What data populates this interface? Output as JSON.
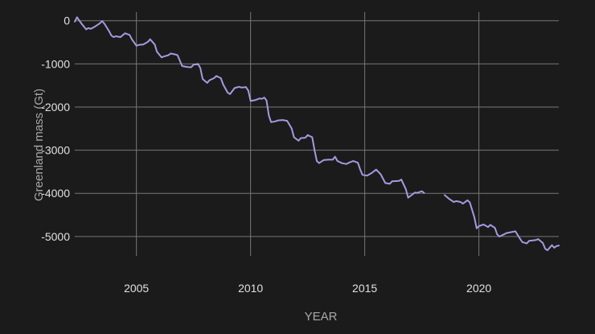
{
  "chart_data": {
    "type": "line",
    "xlabel": "YEAR",
    "ylabel": "Greenland mass (Gt)",
    "xlim": [
      2002.3,
      2023.5
    ],
    "ylim": [
      -5450,
      200
    ],
    "x_ticks": [
      2005,
      2010,
      2015,
      2020
    ],
    "y_ticks": [
      0,
      -1000,
      -2000,
      -3000,
      -4000,
      -5000
    ],
    "grid": true,
    "line_color": "#a59ae0",
    "series": [
      {
        "segments": [
          [
            [
              2002.3,
              -20
            ],
            [
              2002.4,
              80
            ],
            [
              2002.5,
              0
            ],
            [
              2002.6,
              -70
            ],
            [
              2002.8,
              -200
            ],
            [
              2002.9,
              -170
            ],
            [
              2003.0,
              -190
            ],
            [
              2003.2,
              -130
            ],
            [
              2003.4,
              -60
            ],
            [
              2003.5,
              -10
            ],
            [
              2003.6,
              -70
            ],
            [
              2003.8,
              -240
            ],
            [
              2003.9,
              -340
            ],
            [
              2004.0,
              -380
            ],
            [
              2004.1,
              -360
            ],
            [
              2004.3,
              -380
            ],
            [
              2004.5,
              -290
            ],
            [
              2004.7,
              -330
            ],
            [
              2004.8,
              -430
            ],
            [
              2005.0,
              -580
            ],
            [
              2005.1,
              -560
            ],
            [
              2005.3,
              -550
            ],
            [
              2005.5,
              -490
            ],
            [
              2005.6,
              -430
            ],
            [
              2005.8,
              -550
            ],
            [
              2005.9,
              -720
            ],
            [
              2006.1,
              -850
            ],
            [
              2006.2,
              -830
            ],
            [
              2006.4,
              -800
            ],
            [
              2006.5,
              -760
            ],
            [
              2006.7,
              -780
            ],
            [
              2006.8,
              -800
            ],
            [
              2006.9,
              -920
            ],
            [
              2007.0,
              -1050
            ],
            [
              2007.2,
              -1070
            ],
            [
              2007.4,
              -1080
            ],
            [
              2007.5,
              -1020
            ],
            [
              2007.7,
              -1000
            ],
            [
              2007.8,
              -1100
            ],
            [
              2007.9,
              -1350
            ],
            [
              2008.1,
              -1440
            ],
            [
              2008.2,
              -1380
            ],
            [
              2008.4,
              -1330
            ],
            [
              2008.5,
              -1280
            ],
            [
              2008.7,
              -1330
            ],
            [
              2008.8,
              -1480
            ],
            [
              2009.0,
              -1670
            ],
            [
              2009.1,
              -1700
            ],
            [
              2009.3,
              -1560
            ],
            [
              2009.5,
              -1530
            ],
            [
              2009.6,
              -1550
            ],
            [
              2009.8,
              -1540
            ],
            [
              2009.9,
              -1620
            ],
            [
              2010.0,
              -1860
            ],
            [
              2010.2,
              -1840
            ],
            [
              2010.4,
              -1800
            ],
            [
              2010.5,
              -1810
            ],
            [
              2010.6,
              -1780
            ],
            [
              2010.7,
              -1850
            ],
            [
              2010.8,
              -2200
            ],
            [
              2010.9,
              -2350
            ],
            [
              2011.1,
              -2330
            ],
            [
              2011.2,
              -2310
            ],
            [
              2011.4,
              -2300
            ],
            [
              2011.6,
              -2320
            ],
            [
              2011.8,
              -2500
            ],
            [
              2011.9,
              -2700
            ],
            [
              2012.1,
              -2780
            ],
            [
              2012.2,
              -2720
            ],
            [
              2012.4,
              -2710
            ],
            [
              2012.5,
              -2650
            ],
            [
              2012.7,
              -2700
            ],
            [
              2012.8,
              -3000
            ],
            [
              2012.9,
              -3250
            ],
            [
              2013.0,
              -3300
            ],
            [
              2013.2,
              -3230
            ],
            [
              2013.4,
              -3220
            ],
            [
              2013.6,
              -3220
            ],
            [
              2013.7,
              -3150
            ],
            [
              2013.8,
              -3250
            ],
            [
              2014.0,
              -3300
            ],
            [
              2014.2,
              -3320
            ],
            [
              2014.3,
              -3290
            ],
            [
              2014.5,
              -3250
            ],
            [
              2014.7,
              -3290
            ],
            [
              2014.8,
              -3450
            ],
            [
              2014.9,
              -3570
            ],
            [
              2015.1,
              -3590
            ],
            [
              2015.3,
              -3530
            ],
            [
              2015.5,
              -3450
            ],
            [
              2015.7,
              -3560
            ],
            [
              2015.9,
              -3760
            ],
            [
              2016.1,
              -3780
            ],
            [
              2016.2,
              -3720
            ],
            [
              2016.5,
              -3710
            ],
            [
              2016.6,
              -3680
            ],
            [
              2016.8,
              -3900
            ],
            [
              2016.9,
              -4100
            ],
            [
              2017.0,
              -4060
            ],
            [
              2017.2,
              -3980
            ],
            [
              2017.3,
              -3990
            ],
            [
              2017.5,
              -3950
            ],
            [
              2017.6,
              -3990
            ]
          ],
          [
            [
              2018.5,
              -4040
            ],
            [
              2018.7,
              -4130
            ],
            [
              2018.9,
              -4200
            ],
            [
              2019.0,
              -4180
            ],
            [
              2019.2,
              -4200
            ],
            [
              2019.3,
              -4240
            ],
            [
              2019.5,
              -4160
            ],
            [
              2019.6,
              -4210
            ],
            [
              2019.8,
              -4550
            ],
            [
              2019.9,
              -4810
            ],
            [
              2020.0,
              -4760
            ],
            [
              2020.2,
              -4720
            ],
            [
              2020.4,
              -4780
            ],
            [
              2020.5,
              -4730
            ],
            [
              2020.7,
              -4800
            ],
            [
              2020.8,
              -4950
            ],
            [
              2020.9,
              -5000
            ],
            [
              2021.1,
              -4950
            ],
            [
              2021.2,
              -4920
            ],
            [
              2021.4,
              -4900
            ],
            [
              2021.6,
              -4880
            ],
            [
              2021.8,
              -5050
            ],
            [
              2021.9,
              -5130
            ],
            [
              2022.1,
              -5160
            ],
            [
              2022.2,
              -5100
            ],
            [
              2022.5,
              -5080
            ],
            [
              2022.6,
              -5060
            ],
            [
              2022.8,
              -5150
            ],
            [
              2022.9,
              -5280
            ],
            [
              2023.0,
              -5320
            ],
            [
              2023.1,
              -5260
            ],
            [
              2023.2,
              -5200
            ],
            [
              2023.3,
              -5260
            ],
            [
              2023.4,
              -5220
            ],
            [
              2023.5,
              -5210
            ]
          ]
        ]
      }
    ]
  }
}
